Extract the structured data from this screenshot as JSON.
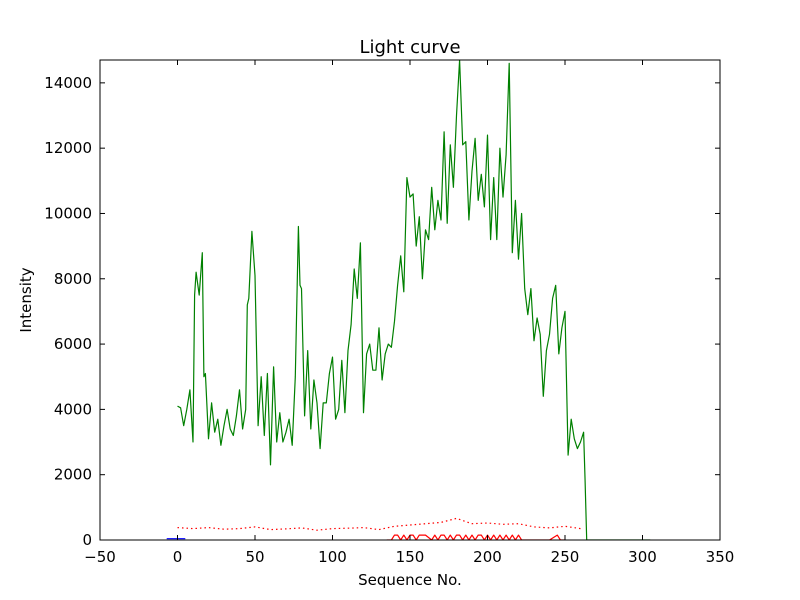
{
  "chart_data": {
    "type": "line",
    "title": "Light curve",
    "xlabel": "Sequence No.",
    "ylabel": "Intensity",
    "xlim": [
      -50,
      350
    ],
    "ylim": [
      0,
      14700
    ],
    "xticks": [
      -50,
      0,
      50,
      100,
      150,
      200,
      250,
      300,
      350
    ],
    "xtick_labels": [
      "−50",
      "0",
      "50",
      "100",
      "150",
      "200",
      "250",
      "300",
      "350"
    ],
    "yticks": [
      0,
      2000,
      4000,
      6000,
      8000,
      10000,
      12000,
      14000
    ],
    "ytick_labels": [
      "0",
      "2000",
      "4000",
      "6000",
      "8000",
      "10000",
      "12000",
      "14000"
    ],
    "grid": false,
    "series": [
      {
        "color": "#008000",
        "style": "solid",
        "x": [
          0,
          2,
          4,
          6,
          8,
          10,
          11,
          12,
          14,
          16,
          17,
          18,
          20,
          22,
          24,
          26,
          28,
          30,
          32,
          34,
          36,
          38,
          40,
          42,
          44,
          45,
          46,
          48,
          50,
          52,
          54,
          56,
          58,
          60,
          62,
          64,
          66,
          68,
          70,
          72,
          74,
          76,
          78,
          79,
          80,
          82,
          84,
          86,
          88,
          90,
          92,
          94,
          96,
          98,
          100,
          102,
          104,
          106,
          108,
          110,
          112,
          114,
          116,
          118,
          120,
          122,
          124,
          126,
          128,
          130,
          132,
          134,
          136,
          138,
          140,
          142,
          144,
          146,
          148,
          150,
          152,
          154,
          156,
          158,
          160,
          162,
          164,
          166,
          168,
          170,
          172,
          174,
          176,
          178,
          180,
          182,
          184,
          186,
          188,
          190,
          192,
          194,
          196,
          198,
          200,
          202,
          204,
          206,
          208,
          210,
          212,
          214,
          216,
          218,
          220,
          222,
          224,
          226,
          228,
          230,
          232,
          234,
          236,
          238,
          240,
          242,
          244,
          246,
          248,
          250,
          252,
          254,
          256,
          258,
          260,
          262,
          263,
          264,
          266,
          270,
          280,
          290,
          300,
          305
        ],
        "y": [
          4100,
          4050,
          3500,
          4000,
          4600,
          3000,
          7500,
          8200,
          7500,
          8800,
          5000,
          5100,
          3100,
          4200,
          3300,
          3700,
          2900,
          3500,
          4000,
          3400,
          3200,
          3800,
          4600,
          3400,
          4000,
          7200,
          7400,
          9450,
          8100,
          3500,
          5000,
          3200,
          5100,
          2300,
          5300,
          3000,
          3900,
          3000,
          3300,
          3700,
          2900,
          5000,
          9600,
          7800,
          7700,
          3800,
          5800,
          3400,
          4900,
          4200,
          2800,
          4200,
          4200,
          5100,
          5600,
          3700,
          4000,
          5500,
          3900,
          5800,
          6600,
          8300,
          7400,
          9100,
          3900,
          5700,
          6000,
          5200,
          5200,
          6500,
          4900,
          5700,
          6000,
          5900,
          6700,
          7800,
          8700,
          7600,
          11100,
          10500,
          10600,
          9000,
          9900,
          8000,
          9500,
          9200,
          10800,
          9500,
          10400,
          9800,
          12500,
          9700,
          12100,
          10800,
          13000,
          14700,
          12100,
          12200,
          9800,
          11300,
          12300,
          10400,
          11200,
          10200,
          12400,
          9200,
          11100,
          9200,
          12000,
          10500,
          11800,
          14600,
          8800,
          10400,
          8600,
          10000,
          7700,
          6900,
          7700,
          6100,
          6800,
          6300,
          4400,
          5800,
          6300,
          7400,
          7800,
          5700,
          6500,
          7000,
          2600,
          3700,
          3100,
          2800,
          3000,
          3300,
          1800,
          0,
          0,
          0,
          0,
          0,
          0,
          0
        ]
      },
      {
        "color": "#ff0000",
        "style": "dotted",
        "x": [
          0,
          10,
          20,
          30,
          40,
          50,
          60,
          70,
          80,
          90,
          100,
          110,
          120,
          130,
          140,
          150,
          160,
          170,
          180,
          190,
          200,
          210,
          220,
          230,
          240,
          250,
          260
        ],
        "y": [
          380,
          350,
          380,
          330,
          350,
          400,
          320,
          340,
          370,
          300,
          350,
          360,
          380,
          320,
          420,
          460,
          500,
          540,
          660,
          500,
          520,
          480,
          500,
          400,
          370,
          420,
          350
        ]
      },
      {
        "color": "#ff0000",
        "style": "solid",
        "x": [
          135,
          138,
          140,
          142,
          144,
          146,
          148,
          150,
          152,
          154,
          156,
          160,
          164,
          166,
          168,
          170,
          172,
          174,
          176,
          178,
          180,
          182,
          184,
          186,
          188,
          190,
          192,
          194,
          196,
          198,
          200,
          202,
          204,
          206,
          208,
          210,
          212,
          214,
          216,
          218,
          220,
          222,
          224,
          226,
          240,
          245,
          247,
          250
        ],
        "y": [
          0,
          0,
          150,
          150,
          0,
          150,
          0,
          150,
          150,
          0,
          150,
          150,
          0,
          150,
          0,
          150,
          150,
          0,
          150,
          0,
          150,
          150,
          0,
          150,
          0,
          150,
          0,
          150,
          150,
          0,
          150,
          0,
          150,
          0,
          150,
          0,
          150,
          0,
          150,
          0,
          150,
          0,
          0,
          0,
          0,
          150,
          0,
          0
        ]
      },
      {
        "color": "#0000ff",
        "style": "solid",
        "x": [
          -7,
          -6,
          0,
          5
        ],
        "y": [
          40,
          40,
          40,
          40
        ]
      }
    ]
  }
}
